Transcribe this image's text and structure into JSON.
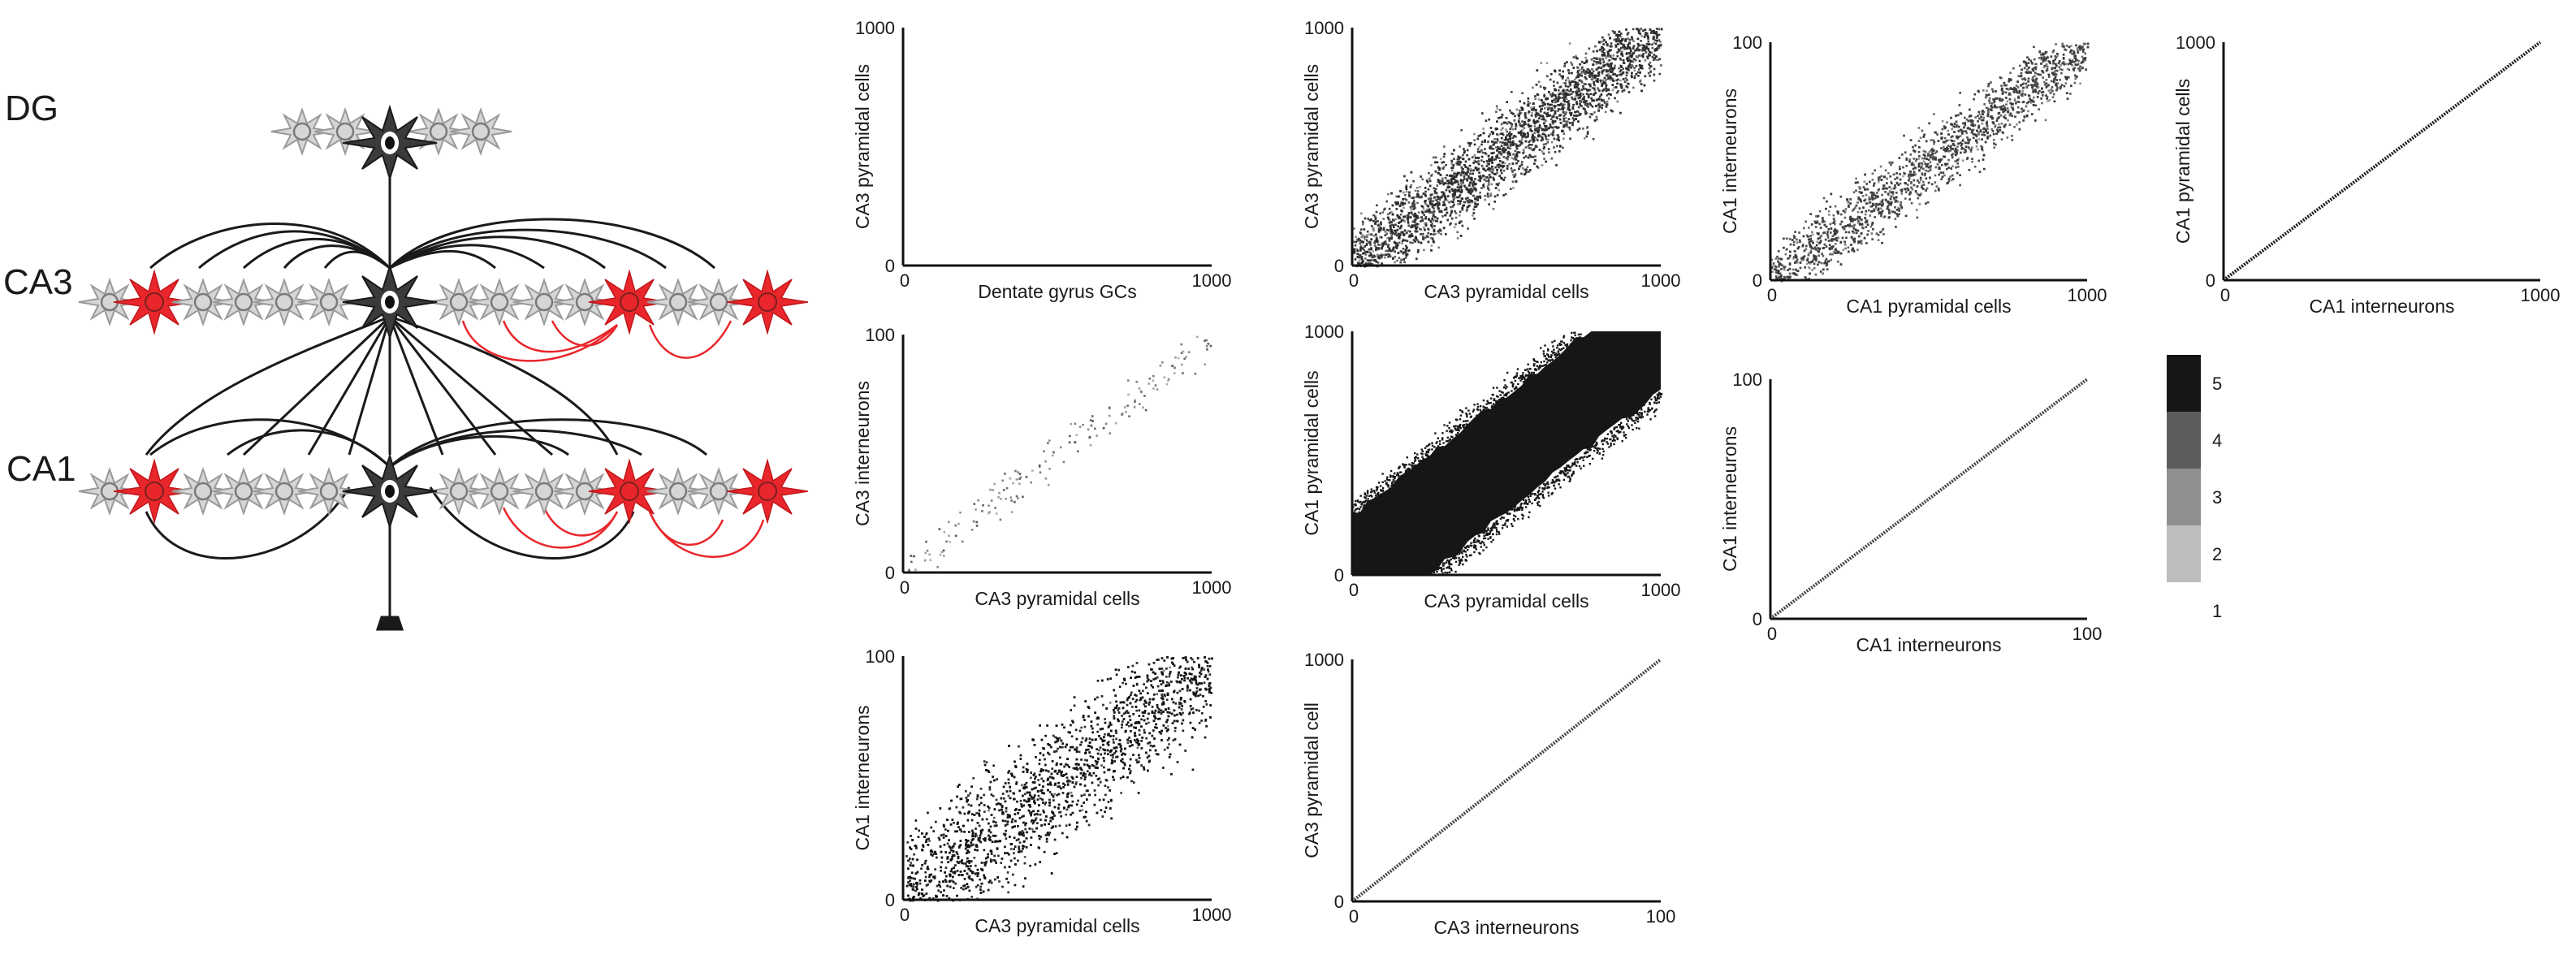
{
  "layer_labels": {
    "dg": "DG",
    "ca3": "CA3",
    "ca1": "CA1"
  },
  "colors": {
    "pyramidal_fill": "#d6d6d6",
    "pyramidal_stroke": "#8c8c8c",
    "interneuron": "#e8262b",
    "central_neuron": "#3a3a3a",
    "axon_black": "#1a1a1a",
    "axon_red": "#e8262b",
    "legend": [
      "#ffffff",
      "#bdbdbd",
      "#8f8f8f",
      "#5c5c5c",
      "#161616"
    ]
  },
  "legend": {
    "levels": [
      "1",
      "2",
      "3",
      "4",
      "5"
    ]
  },
  "chart_data": [
    {
      "id": "dg-ca3",
      "type": "scatter",
      "title": "",
      "xlabel": "Dentate gyrus GCs",
      "ylabel": "CA3 pyramidal cells",
      "xlim": [
        0,
        1000
      ],
      "ylim": [
        0,
        1000
      ],
      "xticks": [
        "0",
        "1000"
      ],
      "yticks": [
        "0",
        "1000"
      ],
      "pattern": "empty",
      "density": 0,
      "color": "#222222"
    },
    {
      "id": "ca3-ca3",
      "type": "scatter",
      "title": "",
      "xlabel": "CA3 pyramidal cells",
      "ylabel": "CA3 pyramidal cells",
      "xlim": [
        0,
        1000
      ],
      "ylim": [
        0,
        1000
      ],
      "xticks": [
        "0",
        "1000"
      ],
      "yticks": [
        "0",
        "1000"
      ],
      "pattern": "diagonal-band",
      "band_halfwidth": 140,
      "density": 5200,
      "color": "#2b2b2b"
    },
    {
      "id": "ca1pyr-ca1int",
      "type": "scatter",
      "title": "",
      "xlabel": "CA1 pyramidal cells",
      "ylabel": "CA1 interneurons",
      "xlim": [
        0,
        1000
      ],
      "ylim": [
        0,
        100
      ],
      "xticks": [
        "0",
        "1000"
      ],
      "yticks": [
        "0",
        "100"
      ],
      "pattern": "diagonal-band",
      "band_halfwidth": 12,
      "density": 3200,
      "color": "#3a3a3a"
    },
    {
      "id": "ca1int-ca1pyr",
      "type": "scatter",
      "title": "",
      "xlabel": "CA1 interneurons",
      "ylabel": "CA1 pyramidal cells",
      "xlim": [
        0,
        1000
      ],
      "ylim": [
        0,
        1000
      ],
      "xticks": [
        "0",
        "1000"
      ],
      "yticks": [
        "0",
        "1000"
      ],
      "pattern": "diagonal-line",
      "density": 0,
      "color": "#1a1a1a"
    },
    {
      "id": "ca3pyr-ca3int",
      "type": "scatter",
      "title": "",
      "xlabel": "CA3 pyramidal cells",
      "ylabel": "CA3 interneurons",
      "xlim": [
        0,
        1000
      ],
      "ylim": [
        0,
        100
      ],
      "xticks": [
        "0",
        "1000"
      ],
      "yticks": [
        "0",
        "100"
      ],
      "pattern": "sparse",
      "band_halfwidth": 8,
      "density": 180,
      "color": "#555555"
    },
    {
      "id": "ca3pyr-ca1pyr",
      "type": "scatter",
      "title": "",
      "xlabel": "CA3 pyramidal cells",
      "ylabel": "CA1 pyramidal cells",
      "xlim": [
        0,
        1000
      ],
      "ylim": [
        0,
        1000
      ],
      "xticks": [
        "0",
        "1000"
      ],
      "yticks": [
        "0",
        "1000"
      ],
      "pattern": "filled-band",
      "band_halfwidth": 240,
      "density": 0,
      "color": "#161616"
    },
    {
      "id": "ca1int-ca1int",
      "type": "scatter",
      "title": "",
      "xlabel": "CA1 interneurons",
      "ylabel": "CA1 interneurons",
      "xlim": [
        0,
        100
      ],
      "ylim": [
        0,
        100
      ],
      "xticks": [
        "0",
        "100"
      ],
      "yticks": [
        "0",
        "100"
      ],
      "pattern": "diagonal-line",
      "density": 0,
      "color": "#444444"
    },
    {
      "id": "ca3pyr-ca1int",
      "type": "scatter",
      "title": "",
      "xlabel": "CA3 pyramidal cells",
      "ylabel": "CA1 interneurons",
      "xlim": [
        0,
        1000
      ],
      "ylim": [
        0,
        100
      ],
      "xticks": [
        "0",
        "1000"
      ],
      "yticks": [
        "0",
        "100"
      ],
      "pattern": "diagonal-band",
      "band_halfwidth": 22,
      "density": 5200,
      "color": "#111111"
    },
    {
      "id": "ca3int-ca3pyr",
      "type": "scatter",
      "title": "",
      "xlabel": "CA3 interneurons",
      "ylabel": "CA3 pyramidal cell",
      "xlim": [
        0,
        100
      ],
      "ylim": [
        0,
        1000
      ],
      "xticks": [
        "0",
        "100"
      ],
      "yticks": [
        "0",
        "1000"
      ],
      "pattern": "diagonal-line",
      "density": 0,
      "color": "#444444"
    }
  ]
}
